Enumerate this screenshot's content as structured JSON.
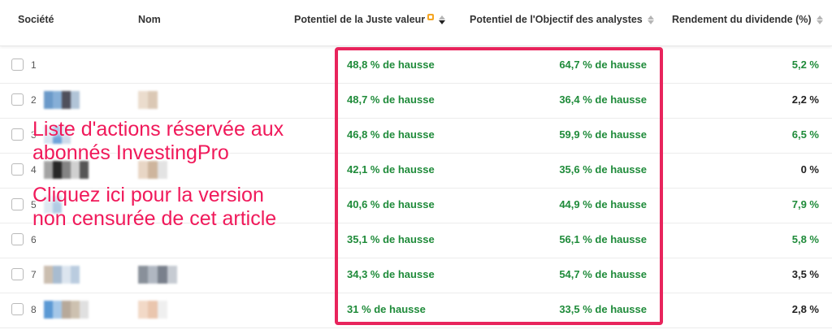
{
  "header": {
    "societe": "Société",
    "nom": "Nom",
    "juste_valeur": "Potentiel de la Juste valeur",
    "objectif": "Potentiel de l'Objectif des analystes",
    "rendement": "Rendement du dividende (%)"
  },
  "rows": [
    {
      "n": "1",
      "juste": "48,8 % de hausse",
      "objectif": "64,7 % de hausse",
      "rendement": "5,2 %",
      "rend_color": "green"
    },
    {
      "n": "2",
      "juste": "48,7 % de hausse",
      "objectif": "36,4 % de hausse",
      "rendement": "2,2 %",
      "rend_color": "black"
    },
    {
      "n": "3",
      "juste": "46,8 % de hausse",
      "objectif": "59,9 % de hausse",
      "rendement": "6,5 %",
      "rend_color": "green"
    },
    {
      "n": "4",
      "juste": "42,1 % de hausse",
      "objectif": "35,6 % de hausse",
      "rendement": "0 %",
      "rend_color": "black"
    },
    {
      "n": "5",
      "juste": "40,6 % de hausse",
      "objectif": "44,9 % de hausse",
      "rendement": "7,9 %",
      "rend_color": "green"
    },
    {
      "n": "6",
      "juste": "35,1 % de hausse",
      "objectif": "56,1 % de hausse",
      "rendement": "5,8 %",
      "rend_color": "green"
    },
    {
      "n": "7",
      "juste": "34,3 % de hausse",
      "objectif": "54,7 % de hausse",
      "rendement": "3,5 %",
      "rend_color": "black"
    },
    {
      "n": "8",
      "juste": "31 % de hausse",
      "objectif": "33,5 % de hausse",
      "rendement": "2,8 %",
      "rend_color": "black"
    }
  ],
  "overlay": {
    "line1": "Liste d'actions réservée aux",
    "line2": "abonnés InvestingPro",
    "line3": "Cliquez ici pour la version",
    "line4": "non censurée de cet article"
  },
  "colors": {
    "accent": "#e8245c",
    "positive": "#1f8b3a"
  }
}
